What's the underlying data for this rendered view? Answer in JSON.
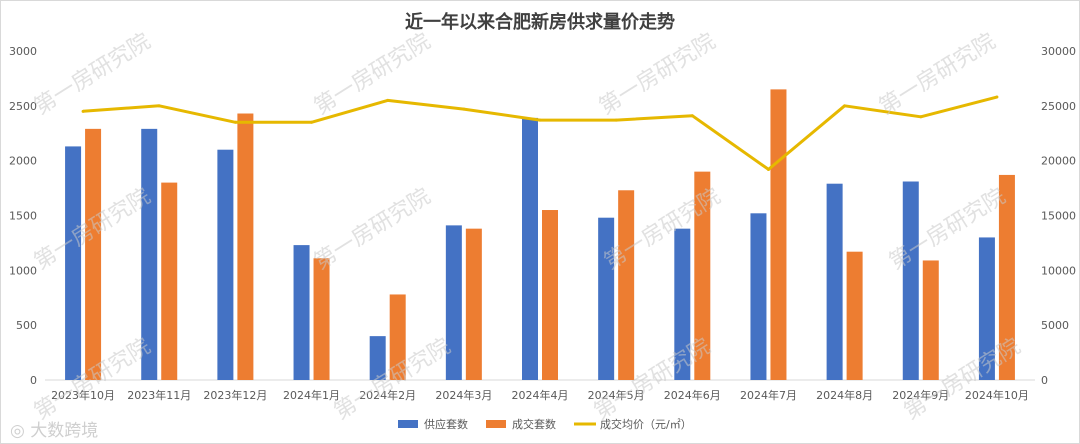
{
  "chart_data": {
    "type": "bar",
    "title": "近一年以来合肥新房供求量价走势",
    "categories": [
      "2023年10月",
      "2023年11月",
      "2023年12月",
      "2024年1月",
      "2024年2月",
      "2024年3月",
      "2024年4月",
      "2024年5月",
      "2024年6月",
      "2024年7月",
      "2024年8月",
      "2024年9月",
      "2024年10月"
    ],
    "series": [
      {
        "name": "供应套数",
        "type": "bar",
        "axis": "left",
        "color": "#4472C4",
        "values": [
          2130,
          2290,
          2100,
          1230,
          400,
          1410,
          2390,
          1480,
          1380,
          1520,
          1790,
          1810,
          1300
        ]
      },
      {
        "name": "成交套数",
        "type": "bar",
        "axis": "left",
        "color": "#ED7D31",
        "values": [
          2290,
          1800,
          2430,
          1110,
          780,
          1380,
          1550,
          1730,
          1900,
          2650,
          1170,
          1090,
          1870
        ]
      },
      {
        "name": "成交均价（元/㎡）",
        "type": "line",
        "axis": "right",
        "color": "#E6B800",
        "values": [
          24500,
          25000,
          23500,
          23500,
          25500,
          24700,
          23700,
          23700,
          24100,
          19200,
          25000,
          24000,
          25800
        ]
      }
    ],
    "y_left": {
      "min": 0,
      "max": 3000,
      "ticks": [
        0,
        500,
        1000,
        1500,
        2000,
        2500,
        3000
      ]
    },
    "y_right": {
      "min": 0,
      "max": 30000,
      "ticks": [
        0,
        5000,
        10000,
        15000,
        20000,
        25000,
        30000
      ]
    },
    "grid": false,
    "legend_position": "bottom"
  },
  "watermark": {
    "text": "第一房研究院"
  },
  "brand": {
    "text": "大数跨境"
  }
}
